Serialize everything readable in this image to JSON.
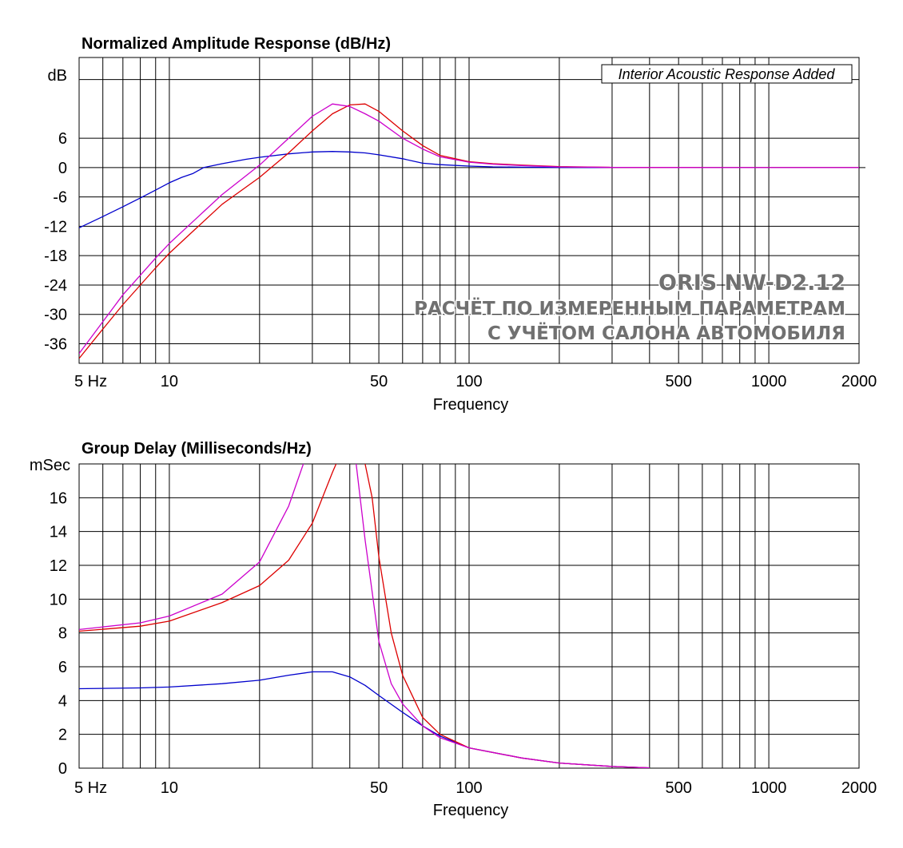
{
  "chart_data": [
    {
      "type": "line",
      "title": "Normalized Amplitude Response (dB/Hz)",
      "xlabel": "Frequency",
      "ylabel": "dB",
      "xscale": "log",
      "xlim": [
        5,
        2000
      ],
      "ylim": [
        -40,
        22.5
      ],
      "grid": true,
      "x_ticks": [
        {
          "v": 5,
          "label": "5  Hz"
        },
        {
          "v": 10,
          "label": "10"
        },
        {
          "v": 50,
          "label": "50"
        },
        {
          "v": 100,
          "label": "100"
        },
        {
          "v": 500,
          "label": "500"
        },
        {
          "v": 1000,
          "label": "1000"
        },
        {
          "v": 2000,
          "label": "2000"
        }
      ],
      "y_ticks": [
        {
          "v": 6,
          "label": "6"
        },
        {
          "v": 0,
          "label": "0"
        },
        {
          "v": -6,
          "label": "-6"
        },
        {
          "v": -12,
          "label": "-12"
        },
        {
          "v": -18,
          "label": "-18"
        },
        {
          "v": -24,
          "label": "-24"
        },
        {
          "v": -30,
          "label": "-30"
        },
        {
          "v": -36,
          "label": "-36"
        }
      ],
      "annotation": "Interior Acoustic Response Added",
      "watermark": [
        "ORIS NW-D2.12",
        "РАСЧЁТ ПО ИЗМЕРЕННЫМ ПАРАМЕТРАМ",
        "С УЧЁТОМ САЛОНА АВТОМОБИЛЯ"
      ],
      "series": [
        {
          "color": "#0000cc",
          "x": [
            5,
            6,
            7,
            8,
            9,
            10,
            11,
            12,
            13,
            15,
            18,
            20,
            25,
            30,
            35,
            40,
            45,
            50,
            60,
            70,
            80,
            100,
            120,
            150,
            200,
            300,
            500,
            700,
            1000,
            2000
          ],
          "y": [
            -12.3,
            -10,
            -8,
            -6.2,
            -4.6,
            -3.1,
            -2.0,
            -1.2,
            0,
            0.8,
            1.7,
            2.1,
            2.8,
            3.2,
            3.3,
            3.2,
            3.0,
            2.6,
            1.8,
            0.9,
            0.6,
            0.3,
            0.15,
            0.08,
            0.03,
            0.01,
            0,
            0,
            0,
            0
          ]
        },
        {
          "color": "#dd0000",
          "x": [
            5,
            6,
            7,
            8,
            9,
            10,
            12,
            15,
            20,
            25,
            30,
            35,
            40,
            45,
            50,
            60,
            70,
            80,
            100,
            120,
            150,
            200,
            300,
            500,
            700,
            1000,
            2000
          ],
          "y": [
            -39,
            -33,
            -28,
            -24,
            -20.5,
            -17.5,
            -13,
            -7.5,
            -2,
            3,
            7.5,
            11,
            12.8,
            13,
            11.5,
            7.5,
            4.5,
            2.5,
            1.2,
            0.8,
            0.5,
            0.2,
            0.05,
            0.01,
            0,
            0,
            0
          ]
        },
        {
          "color": "#cc00cc",
          "x": [
            5,
            6,
            7,
            8,
            9,
            10,
            12,
            15,
            20,
            25,
            30,
            35,
            40,
            45,
            50,
            60,
            70,
            80,
            100,
            120,
            150,
            200,
            300,
            500,
            700,
            1000,
            2000
          ],
          "y": [
            -38,
            -31.5,
            -26,
            -22,
            -18.5,
            -15.5,
            -11,
            -5.5,
            0.5,
            6,
            10.5,
            13,
            12.5,
            11,
            9.5,
            6,
            3.8,
            2.2,
            1.1,
            0.7,
            0.4,
            0.15,
            0.04,
            0.01,
            0,
            0,
            0
          ]
        }
      ]
    },
    {
      "type": "line",
      "title": "Group Delay (Milliseconds/Hz)",
      "xlabel": "Frequency",
      "ylabel": "mSec",
      "xscale": "log",
      "xlim": [
        5,
        2000
      ],
      "ylim": [
        0,
        18
      ],
      "grid": true,
      "x_ticks": [
        {
          "v": 5,
          "label": "5  Hz"
        },
        {
          "v": 10,
          "label": "10"
        },
        {
          "v": 50,
          "label": "50"
        },
        {
          "v": 100,
          "label": "100"
        },
        {
          "v": 500,
          "label": "500"
        },
        {
          "v": 1000,
          "label": "1000"
        },
        {
          "v": 2000,
          "label": "2000"
        }
      ],
      "y_ticks": [
        {
          "v": 0,
          "label": "0"
        },
        {
          "v": 2,
          "label": "2"
        },
        {
          "v": 4,
          "label": "4"
        },
        {
          "v": 6,
          "label": "6"
        },
        {
          "v": 8,
          "label": "8"
        },
        {
          "v": 10,
          "label": "10"
        },
        {
          "v": 12,
          "label": "12"
        },
        {
          "v": 14,
          "label": "14"
        },
        {
          "v": 16,
          "label": "16"
        }
      ],
      "series": [
        {
          "color": "#0000cc",
          "x": [
            5,
            8,
            10,
            15,
            20,
            25,
            30,
            35,
            40,
            45,
            50,
            60,
            70,
            80,
            100,
            150,
            200,
            300,
            400
          ],
          "y": [
            4.7,
            4.75,
            4.8,
            5.0,
            5.2,
            5.5,
            5.7,
            5.7,
            5.4,
            4.9,
            4.3,
            3.3,
            2.5,
            1.9,
            1.2,
            0.6,
            0.3,
            0.1,
            0.02
          ]
        },
        {
          "color": "#dd0000",
          "x": [
            5,
            8,
            10,
            15,
            20,
            25,
            30,
            35,
            36,
            37.5,
            40,
            45,
            47.5,
            50,
            55,
            60,
            70,
            80,
            100,
            150,
            200,
            300,
            400
          ],
          "y": [
            8.1,
            8.4,
            8.7,
            9.8,
            10.8,
            12.3,
            14.5,
            17.5,
            18,
            null,
            null,
            18,
            16,
            12.5,
            8,
            5.5,
            3.0,
            2.0,
            1.2,
            0.6,
            0.3,
            0.1,
            0.02
          ]
        },
        {
          "color": "#cc00cc",
          "x": [
            5,
            8,
            10,
            15,
            20,
            25,
            28,
            30,
            35,
            40,
            42,
            45,
            50,
            55,
            60,
            70,
            80,
            100,
            150,
            200,
            300,
            400
          ],
          "y": [
            8.2,
            8.6,
            9.0,
            10.3,
            12.2,
            15.5,
            18,
            null,
            null,
            null,
            18,
            13.5,
            7.5,
            5.0,
            3.8,
            2.5,
            1.8,
            1.2,
            0.6,
            0.3,
            0.1,
            0.02
          ]
        }
      ]
    }
  ]
}
